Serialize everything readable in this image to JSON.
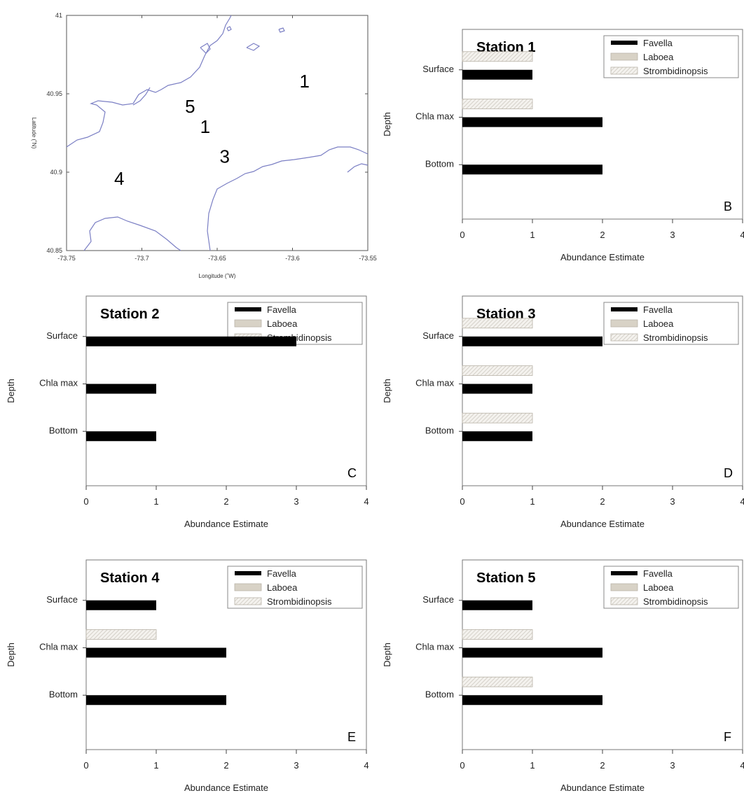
{
  "map": {
    "xlabel": "Longitude (˚W)",
    "ylabel": "Latitude (˚N)",
    "xlim": [
      -73.75,
      -73.55
    ],
    "ylim": [
      40.85,
      41.0
    ],
    "x_ticks": [
      "-73.75",
      "-73.7",
      "-73.65",
      "-73.6",
      "-73.55"
    ],
    "y_ticks": [
      "40.85",
      "40.9",
      "40.95",
      "41"
    ],
    "station_markers": [
      {
        "label": "1",
        "lon": -73.592,
        "lat": 40.958
      },
      {
        "label": "5",
        "lon": -73.668,
        "lat": 40.942
      },
      {
        "label": "1",
        "lon": -73.658,
        "lat": 40.929
      },
      {
        "label": "3",
        "lon": -73.645,
        "lat": 40.91
      },
      {
        "label": "4",
        "lon": -73.715,
        "lat": 40.896
      }
    ],
    "coast_color": "#7b7fc4"
  },
  "legend": {
    "items": [
      {
        "name": "Favella",
        "pattern": "solid-black"
      },
      {
        "name": "Laboea",
        "pattern": "solid-tan"
      },
      {
        "name": "Strombidinopsis",
        "pattern": "hatched-light"
      }
    ]
  },
  "chart_data": [
    {
      "type": "bar",
      "orientation": "horizontal",
      "panel": "B",
      "title": "Station 1",
      "categories": [
        "Surface",
        "Chla max",
        "Bottom"
      ],
      "series": [
        {
          "name": "Favella",
          "values": [
            1,
            2,
            2
          ]
        },
        {
          "name": "Laboea",
          "values": [
            0,
            0,
            0
          ]
        },
        {
          "name": "Strombidinopsis",
          "values": [
            1,
            1,
            0
          ]
        }
      ],
      "xlabel": "Abundance Estimate",
      "ylabel": "Depth",
      "xlim": [
        0,
        4
      ],
      "x_ticks": [
        "0",
        "1",
        "2",
        "3",
        "4"
      ],
      "legend_position": "top-right"
    },
    {
      "type": "bar",
      "orientation": "horizontal",
      "panel": "C",
      "title": "Station 2",
      "categories": [
        "Surface",
        "Chla max",
        "Bottom"
      ],
      "series": [
        {
          "name": "Favella",
          "values": [
            3,
            1,
            1
          ]
        },
        {
          "name": "Laboea",
          "values": [
            0,
            0,
            0
          ]
        },
        {
          "name": "Strombidinopsis",
          "values": [
            0,
            0,
            0
          ]
        }
      ],
      "xlabel": "Abundance Estimate",
      "ylabel": "Depth",
      "xlim": [
        0,
        4
      ],
      "x_ticks": [
        "0",
        "1",
        "2",
        "3",
        "4"
      ],
      "legend_position": "top-right"
    },
    {
      "type": "bar",
      "orientation": "horizontal",
      "panel": "D",
      "title": "Station 3",
      "categories": [
        "Surface",
        "Chla max",
        "Bottom"
      ],
      "series": [
        {
          "name": "Favella",
          "values": [
            2,
            1,
            1
          ]
        },
        {
          "name": "Laboea",
          "values": [
            0,
            0,
            0
          ]
        },
        {
          "name": "Strombidinopsis",
          "values": [
            1,
            1,
            1
          ]
        }
      ],
      "xlabel": "Abundance Estimate",
      "ylabel": "Depth",
      "xlim": [
        0,
        4
      ],
      "x_ticks": [
        "0",
        "1",
        "2",
        "3",
        "4"
      ],
      "legend_position": "top-right"
    },
    {
      "type": "bar",
      "orientation": "horizontal",
      "panel": "E",
      "title": "Station 4",
      "categories": [
        "Surface",
        "Chla max",
        "Bottom"
      ],
      "series": [
        {
          "name": "Favella",
          "values": [
            1,
            2,
            2
          ]
        },
        {
          "name": "Laboea",
          "values": [
            0,
            0,
            0
          ]
        },
        {
          "name": "Strombidinopsis",
          "values": [
            0,
            1,
            0
          ]
        }
      ],
      "xlabel": "Abundance Estimate",
      "ylabel": "Depth",
      "xlim": [
        0,
        4
      ],
      "x_ticks": [
        "0",
        "1",
        "2",
        "3",
        "4"
      ],
      "legend_position": "top-right"
    },
    {
      "type": "bar",
      "orientation": "horizontal",
      "panel": "F",
      "title": "Station 5",
      "categories": [
        "Surface",
        "Chla max",
        "Bottom"
      ],
      "series": [
        {
          "name": "Favella",
          "values": [
            1,
            2,
            2
          ]
        },
        {
          "name": "Laboea",
          "values": [
            0,
            0,
            0
          ]
        },
        {
          "name": "Strombidinopsis",
          "values": [
            0,
            1,
            1
          ]
        }
      ],
      "xlabel": "Abundance Estimate",
      "ylabel": "Depth",
      "xlim": [
        0,
        4
      ],
      "x_ticks": [
        "0",
        "1",
        "2",
        "3",
        "4"
      ],
      "legend_position": "top-right"
    }
  ]
}
